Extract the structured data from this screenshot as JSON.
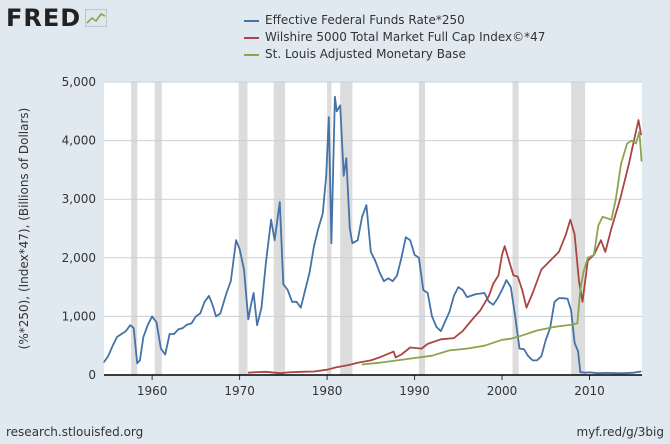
{
  "brand": {
    "logo_text": "FRED",
    "logo_icon": "chart-line-icon"
  },
  "footer": {
    "source": "research.stlouisfed.org",
    "short_url": "myf.red/g/3big"
  },
  "colors": {
    "background": "#e1e9f0",
    "plot_bg": "#ffffff",
    "grid": "#c8d0d8",
    "recession": "#dcdcdc",
    "fedfunds": "#4572a7",
    "wilshire": "#aa4643",
    "monbase": "#89a54e"
  },
  "chart_data": {
    "type": "line",
    "title": "",
    "xlabel": "",
    "ylabel": "(%*250), (Index*47), (Billions of Dollars)",
    "xlim": [
      1954.5,
      2016.0
    ],
    "ylim": [
      0,
      5000
    ],
    "x_ticks": [
      1960,
      1970,
      1980,
      1990,
      2000,
      2010
    ],
    "x_tick_labels": [
      "1960",
      "1970",
      "1980",
      "1990",
      "2000",
      "2010"
    ],
    "y_ticks": [
      0,
      1000,
      2000,
      3000,
      4000,
      5000
    ],
    "y_tick_labels": [
      "0",
      "1,000",
      "2,000",
      "3,000",
      "4,000",
      "5,000"
    ],
    "grid": true,
    "legend_position": "top",
    "recessions": [
      [
        1957.6,
        1958.3
      ],
      [
        1960.3,
        1961.1
      ],
      [
        1969.9,
        1970.9
      ],
      [
        1973.9,
        1975.2
      ],
      [
        1980.0,
        1980.5
      ],
      [
        1981.5,
        1982.9
      ],
      [
        1990.5,
        1991.2
      ],
      [
        2001.2,
        2001.9
      ],
      [
        2007.9,
        2009.5
      ]
    ],
    "series": [
      {
        "name": "Effective Federal Funds Rate*250",
        "color": "#4572a7",
        "x": [
          1954.5,
          1955.0,
          1955.5,
          1956.0,
          1956.5,
          1957.0,
          1957.5,
          1957.9,
          1958.3,
          1958.6,
          1959.0,
          1959.5,
          1960.0,
          1960.5,
          1961.0,
          1961.5,
          1962.0,
          1962.5,
          1963.0,
          1963.5,
          1964.0,
          1964.5,
          1965.0,
          1965.5,
          1966.0,
          1966.5,
          1966.9,
          1967.3,
          1967.8,
          1968.5,
          1969.0,
          1969.6,
          1970.0,
          1970.5,
          1971.0,
          1971.3,
          1971.6,
          1972.0,
          1972.5,
          1973.0,
          1973.6,
          1974.0,
          1974.6,
          1975.0,
          1975.5,
          1976.0,
          1976.5,
          1977.0,
          1977.5,
          1978.0,
          1978.5,
          1979.0,
          1979.5,
          1979.9,
          1980.2,
          1980.5,
          1980.9,
          1981.1,
          1981.5,
          1981.9,
          1982.2,
          1982.6,
          1982.9,
          1983.5,
          1984.0,
          1984.5,
          1985.0,
          1985.5,
          1986.0,
          1986.5,
          1987.0,
          1987.5,
          1988.0,
          1988.5,
          1989.0,
          1989.5,
          1990.0,
          1990.5,
          1991.0,
          1991.5,
          1992.0,
          1992.5,
          1993.0,
          1994.0,
          1994.5,
          1995.0,
          1995.5,
          1996.0,
          1997.0,
          1998.0,
          1998.5,
          1999.0,
          1999.5,
          2000.0,
          2000.5,
          2001.0,
          2001.5,
          2002.0,
          2002.5,
          2003.0,
          2003.5,
          2004.0,
          2004.5,
          2005.0,
          2005.5,
          2006.0,
          2006.5,
          2007.0,
          2007.5,
          2007.9,
          2008.3,
          2008.7,
          2008.95,
          2009.5,
          2010.0,
          2011.0,
          2012.0,
          2013.0,
          2014.0,
          2015.0,
          2015.9
        ],
        "values": [
          220,
          330,
          500,
          650,
          700,
          750,
          850,
          800,
          200,
          250,
          650,
          850,
          1000,
          900,
          450,
          350,
          700,
          700,
          780,
          800,
          860,
          880,
          1000,
          1050,
          1250,
          1350,
          1200,
          1000,
          1050,
          1400,
          1600,
          2300,
          2150,
          1800,
          950,
          1200,
          1400,
          850,
          1150,
          1900,
          2650,
          2300,
          2950,
          1550,
          1450,
          1250,
          1250,
          1150,
          1450,
          1750,
          2200,
          2500,
          2750,
          3400,
          4400,
          2250,
          4750,
          4500,
          4600,
          3400,
          3700,
          2500,
          2250,
          2300,
          2700,
          2900,
          2100,
          1950,
          1750,
          1600,
          1650,
          1600,
          1700,
          2000,
          2350,
          2300,
          2050,
          2000,
          1450,
          1400,
          1000,
          820,
          750,
          1080,
          1350,
          1500,
          1450,
          1330,
          1380,
          1400,
          1250,
          1200,
          1310,
          1450,
          1620,
          1500,
          1000,
          450,
          440,
          320,
          250,
          250,
          320,
          600,
          800,
          1250,
          1310,
          1310,
          1300,
          1100,
          550,
          400,
          50,
          40,
          45,
          30,
          35,
          30,
          30,
          40,
          60
        ]
      },
      {
        "name": "Wilshire 5000 Total Market Full Cap Index©*47",
        "color": "#aa4643",
        "x": [
          1971.0,
          1972.0,
          1973.0,
          1974.0,
          1974.7,
          1975.5,
          1977.0,
          1978.5,
          1980.0,
          1981.0,
          1982.5,
          1983.5,
          1985.0,
          1986.0,
          1987.6,
          1987.85,
          1988.5,
          1989.5,
          1990.8,
          1991.5,
          1993.0,
          1994.5,
          1995.5,
          1996.5,
          1997.5,
          1998.5,
          1999.0,
          1999.6,
          2000.0,
          2000.3,
          2000.8,
          2001.3,
          2001.8,
          2002.3,
          2002.8,
          2003.5,
          2004.5,
          2005.5,
          2006.5,
          2007.3,
          2007.8,
          2008.3,
          2008.8,
          2009.2,
          2009.8,
          2010.5,
          2011.3,
          2011.8,
          2012.5,
          2013.5,
          2014.5,
          2015.0,
          2015.6,
          2015.9
        ],
        "values": [
          40,
          50,
          55,
          40,
          30,
          45,
          55,
          60,
          90,
          130,
          170,
          210,
          250,
          300,
          400,
          300,
          350,
          470,
          450,
          530,
          610,
          630,
          750,
          930,
          1100,
          1350,
          1560,
          1700,
          2050,
          2200,
          1950,
          1700,
          1680,
          1450,
          1150,
          1400,
          1800,
          1950,
          2100,
          2400,
          2650,
          2400,
          1600,
          1250,
          1950,
          2050,
          2300,
          2100,
          2500,
          3000,
          3600,
          3950,
          4350,
          4100
        ]
      },
      {
        "name": "St. Louis Adjusted Monetary Base",
        "color": "#89a54e",
        "x": [
          1984.0,
          1986.0,
          1988.0,
          1990.0,
          1992.0,
          1994.0,
          1996.0,
          1998.0,
          2000.0,
          2001.0,
          2002.0,
          2004.0,
          2006.0,
          2008.0,
          2008.6,
          2008.95,
          2009.3,
          2009.8,
          2010.5,
          2011.0,
          2011.5,
          2012.5,
          2013.0,
          2013.6,
          2014.3,
          2014.8,
          2015.3,
          2015.7,
          2015.95
        ],
        "values": [
          180,
          210,
          250,
          290,
          330,
          420,
          450,
          500,
          600,
          620,
          660,
          760,
          820,
          860,
          880,
          1450,
          1750,
          2000,
          2050,
          2550,
          2700,
          2650,
          3000,
          3600,
          3950,
          4000,
          3950,
          4150,
          3650
        ]
      }
    ]
  }
}
